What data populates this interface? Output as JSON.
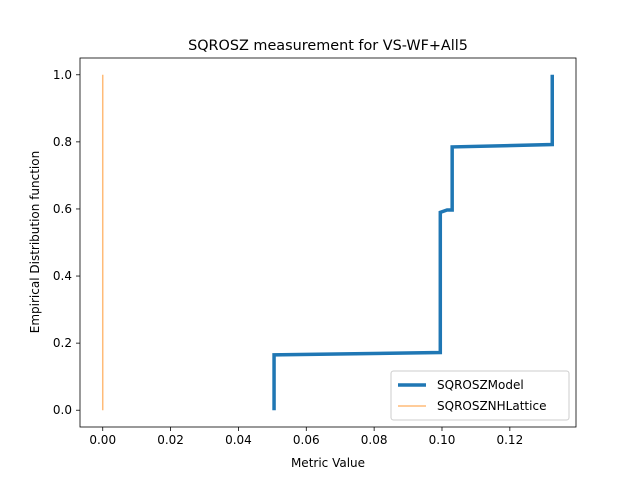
{
  "chart_data": {
    "type": "line",
    "title": "SQROSZ measurement for VS-WF+All5",
    "xlabel": "Metric Value",
    "ylabel": "Empirical Distribution function",
    "xlim": [
      -0.0067,
      0.1395
    ],
    "ylim": [
      -0.05,
      1.05
    ],
    "xticks": [
      0.0,
      0.02,
      0.04,
      0.06,
      0.08,
      0.1,
      0.12
    ],
    "xtick_labels": [
      "0.00",
      "0.02",
      "0.04",
      "0.06",
      "0.08",
      "0.10",
      "0.12"
    ],
    "yticks": [
      0.0,
      0.2,
      0.4,
      0.6,
      0.8,
      1.0
    ],
    "ytick_labels": [
      "0.0",
      "0.2",
      "0.4",
      "0.6",
      "0.8",
      "1.0"
    ],
    "grid": false,
    "legend_position": "lower-right",
    "series": [
      {
        "name": "SQROSZModel",
        "color": "#1f77b4",
        "style": "thick",
        "x": [
          0.0505,
          0.0505,
          0.0995,
          0.0995,
          0.1015,
          0.103,
          0.103,
          0.1325,
          0.1325
        ],
        "y": [
          0.0,
          0.165,
          0.172,
          0.59,
          0.597,
          0.597,
          0.785,
          0.792,
          1.0
        ]
      },
      {
        "name": "SQROSZNHLattice",
        "color": "#ffbb78",
        "style": "thin",
        "x": [
          0.0,
          0.0
        ],
        "y": [
          0.0,
          1.0
        ]
      }
    ]
  }
}
